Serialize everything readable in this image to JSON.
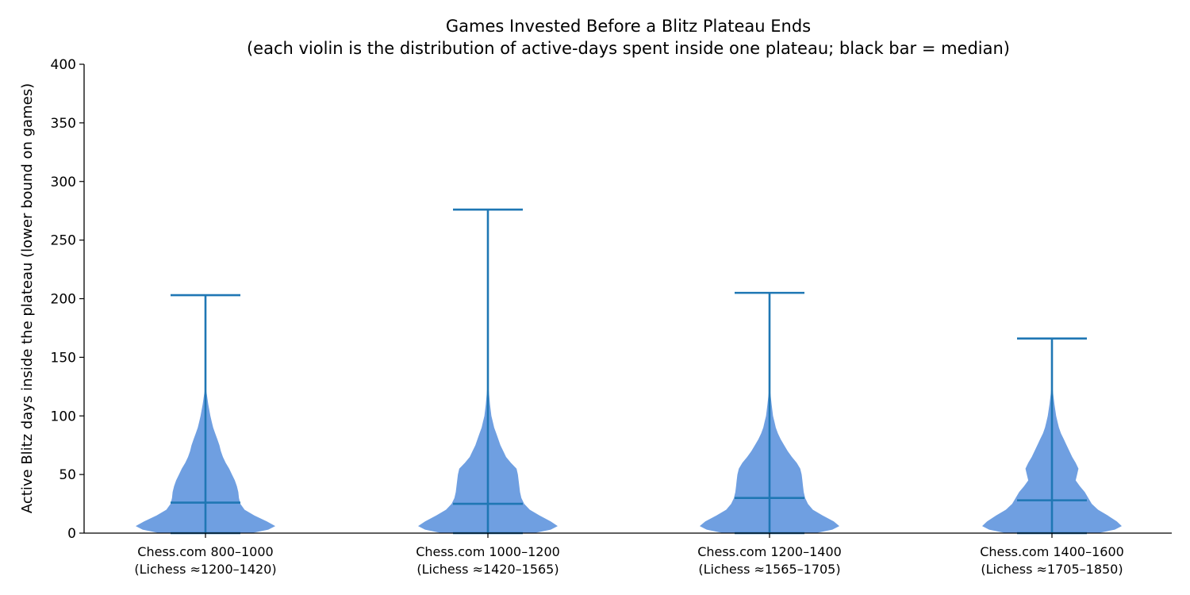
{
  "chart_data": {
    "type": "violin",
    "title": "Games Invested Before a Blitz Plateau Ends",
    "subtitle": "(each violin is the distribution of active-days spent inside one plateau; black bar = median)",
    "xlabel": "",
    "ylabel": "Active Blitz days inside the plateau (lower bound on games)",
    "ylim": [
      0,
      400
    ],
    "yticks": [
      0,
      50,
      100,
      150,
      200,
      250,
      300,
      350,
      400
    ],
    "grid": false,
    "legend": "none",
    "colors": {
      "body": "#6f9fe1",
      "lines": "#1f77b4",
      "axis": "#000000"
    },
    "categories": [
      {
        "line1": "Chess.com 800–1000",
        "line2": "(Lichess ≈1200–1420)"
      },
      {
        "line1": "Chess.com 1000–1200",
        "line2": "(Lichess ≈1420–1565)"
      },
      {
        "line1": "Chess.com 1200–1400",
        "line2": "(Lichess ≈1565–1705)"
      },
      {
        "line1": "Chess.com 1400–1600",
        "line2": "(Lichess ≈1705–1850)"
      }
    ],
    "series": [
      {
        "min": 0,
        "max": 203,
        "median": 26,
        "density_y": [
          0,
          3,
          6,
          10,
          15,
          20,
          25,
          30,
          35,
          40,
          45,
          50,
          55,
          60,
          65,
          70,
          75,
          80,
          85,
          90,
          95,
          100,
          110,
          118,
          125
        ],
        "density_w": [
          0.66,
          0.9,
          1.0,
          0.88,
          0.7,
          0.56,
          0.5,
          0.48,
          0.47,
          0.45,
          0.42,
          0.38,
          0.34,
          0.29,
          0.25,
          0.22,
          0.2,
          0.17,
          0.14,
          0.11,
          0.09,
          0.07,
          0.04,
          0.02,
          0
        ]
      },
      {
        "min": 0,
        "max": 276,
        "median": 25,
        "density_y": [
          0,
          3,
          6,
          10,
          15,
          20,
          25,
          30,
          35,
          40,
          45,
          50,
          55,
          60,
          65,
          70,
          75,
          80,
          85,
          90,
          95,
          100,
          110,
          120,
          130
        ],
        "density_w": [
          0.66,
          0.9,
          1.0,
          0.9,
          0.74,
          0.6,
          0.52,
          0.48,
          0.46,
          0.45,
          0.44,
          0.43,
          0.41,
          0.33,
          0.26,
          0.22,
          0.18,
          0.15,
          0.12,
          0.09,
          0.07,
          0.05,
          0.03,
          0.015,
          0
        ]
      },
      {
        "min": 0,
        "max": 205,
        "median": 30,
        "density_y": [
          0,
          3,
          6,
          10,
          15,
          20,
          25,
          30,
          35,
          40,
          45,
          50,
          55,
          60,
          65,
          70,
          75,
          80,
          85,
          90,
          95,
          100,
          110,
          118,
          125
        ],
        "density_w": [
          0.66,
          0.9,
          1.0,
          0.92,
          0.76,
          0.62,
          0.55,
          0.51,
          0.49,
          0.48,
          0.47,
          0.46,
          0.44,
          0.39,
          0.32,
          0.26,
          0.21,
          0.16,
          0.12,
          0.09,
          0.07,
          0.05,
          0.03,
          0.015,
          0
        ]
      },
      {
        "min": 0,
        "max": 166,
        "median": 28,
        "density_y": [
          0,
          3,
          6,
          10,
          15,
          20,
          25,
          30,
          35,
          40,
          45,
          50,
          55,
          60,
          65,
          70,
          75,
          80,
          85,
          90,
          95,
          100,
          110,
          120,
          130
        ],
        "density_w": [
          0.66,
          0.9,
          1.0,
          0.93,
          0.8,
          0.66,
          0.57,
          0.52,
          0.47,
          0.4,
          0.34,
          0.36,
          0.38,
          0.34,
          0.29,
          0.25,
          0.21,
          0.17,
          0.13,
          0.1,
          0.08,
          0.06,
          0.035,
          0.015,
          0
        ]
      }
    ]
  }
}
